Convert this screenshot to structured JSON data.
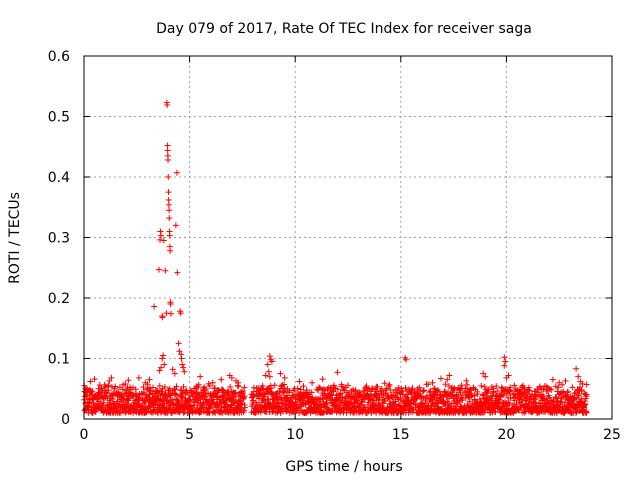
{
  "chart_data": {
    "type": "scatter",
    "title": "Day 079 of 2017, Rate Of TEC Index for receiver saga",
    "xlabel": "GPS time / hours",
    "ylabel": "ROTI / TECUs",
    "xlim": [
      0,
      25
    ],
    "ylim": [
      0,
      0.6
    ],
    "xticks": [
      0,
      5,
      10,
      15,
      20,
      25
    ],
    "yticks": [
      0,
      0.1,
      0.2,
      0.3,
      0.4,
      0.5,
      0.6
    ],
    "xtick_labels": [
      "0",
      "5",
      "10",
      "15",
      "20",
      "25"
    ],
    "ytick_labels": [
      "0",
      "0.1",
      "0.2",
      "0.3",
      "0.4",
      "0.5",
      "0.6"
    ],
    "grid": true,
    "marker": "+",
    "color": "#ff0000",
    "baseline": {
      "x_start": 0.0,
      "x_end": 23.8,
      "step": 0.02,
      "gap": [
        7.6,
        7.9
      ],
      "typical_min": 0.01,
      "typical_max": 0.06
    },
    "points": [
      [
        3.32,
        0.186
      ],
      [
        3.55,
        0.247
      ],
      [
        3.6,
        0.296
      ],
      [
        3.62,
        0.31
      ],
      [
        3.65,
        0.303
      ],
      [
        3.7,
        0.17
      ],
      [
        3.72,
        0.168
      ],
      [
        3.78,
        0.295
      ],
      [
        3.85,
        0.245
      ],
      [
        3.9,
        0.175
      ],
      [
        3.92,
        0.523
      ],
      [
        3.94,
        0.519
      ],
      [
        3.95,
        0.452
      ],
      [
        3.96,
        0.444
      ],
      [
        3.97,
        0.435
      ],
      [
        3.98,
        0.428
      ],
      [
        3.99,
        0.4
      ],
      [
        4.0,
        0.375
      ],
      [
        4.01,
        0.362
      ],
      [
        4.02,
        0.354
      ],
      [
        4.03,
        0.345
      ],
      [
        4.04,
        0.332
      ],
      [
        4.05,
        0.31
      ],
      [
        4.06,
        0.303
      ],
      [
        4.07,
        0.285
      ],
      [
        4.08,
        0.278
      ],
      [
        4.09,
        0.193
      ],
      [
        4.1,
        0.19
      ],
      [
        4.12,
        0.174
      ],
      [
        4.35,
        0.32
      ],
      [
        4.4,
        0.407
      ],
      [
        4.42,
        0.242
      ],
      [
        4.55,
        0.178
      ],
      [
        4.58,
        0.175
      ],
      [
        4.48,
        0.125
      ],
      [
        4.52,
        0.112
      ],
      [
        4.6,
        0.107
      ],
      [
        4.62,
        0.1
      ],
      [
        4.65,
        0.09
      ],
      [
        3.7,
        0.1
      ],
      [
        3.75,
        0.105
      ],
      [
        3.8,
        0.09
      ],
      [
        3.65,
        0.085
      ],
      [
        3.58,
        0.08
      ],
      [
        4.2,
        0.082
      ],
      [
        4.3,
        0.075
      ],
      [
        4.7,
        0.085
      ],
      [
        4.75,
        0.078
      ],
      [
        8.8,
        0.104
      ],
      [
        8.85,
        0.098
      ],
      [
        8.9,
        0.095
      ],
      [
        8.7,
        0.09
      ],
      [
        8.75,
        0.078
      ],
      [
        8.6,
        0.072
      ],
      [
        8.8,
        0.07
      ],
      [
        9.3,
        0.075
      ],
      [
        9.5,
        0.068
      ],
      [
        10.2,
        0.062
      ],
      [
        10.8,
        0.06
      ],
      [
        11.3,
        0.066
      ],
      [
        12.0,
        0.077
      ],
      [
        12.4,
        0.052
      ],
      [
        15.2,
        0.101
      ],
      [
        15.25,
        0.098
      ],
      [
        16.5,
        0.06
      ],
      [
        16.9,
        0.067
      ],
      [
        17.3,
        0.072
      ],
      [
        17.2,
        0.065
      ],
      [
        18.1,
        0.063
      ],
      [
        18.9,
        0.075
      ],
      [
        19.0,
        0.07
      ],
      [
        19.9,
        0.102
      ],
      [
        19.95,
        0.095
      ],
      [
        19.9,
        0.088
      ],
      [
        20.1,
        0.072
      ],
      [
        20.0,
        0.068
      ],
      [
        22.2,
        0.065
      ],
      [
        22.5,
        0.06
      ],
      [
        22.8,
        0.063
      ],
      [
        23.3,
        0.083
      ],
      [
        23.4,
        0.07
      ],
      [
        23.5,
        0.062
      ],
      [
        23.6,
        0.058
      ],
      [
        6.9,
        0.072
      ],
      [
        7.0,
        0.068
      ],
      [
        7.2,
        0.063
      ],
      [
        7.3,
        0.06
      ],
      [
        6.5,
        0.065
      ],
      [
        6.1,
        0.06
      ],
      [
        5.5,
        0.07
      ],
      [
        5.9,
        0.058
      ],
      [
        1.3,
        0.068
      ],
      [
        1.2,
        0.063
      ],
      [
        0.5,
        0.066
      ],
      [
        0.3,
        0.062
      ],
      [
        2.1,
        0.064
      ],
      [
        2.6,
        0.068
      ],
      [
        2.9,
        0.06
      ],
      [
        3.1,
        0.065
      ]
    ]
  }
}
